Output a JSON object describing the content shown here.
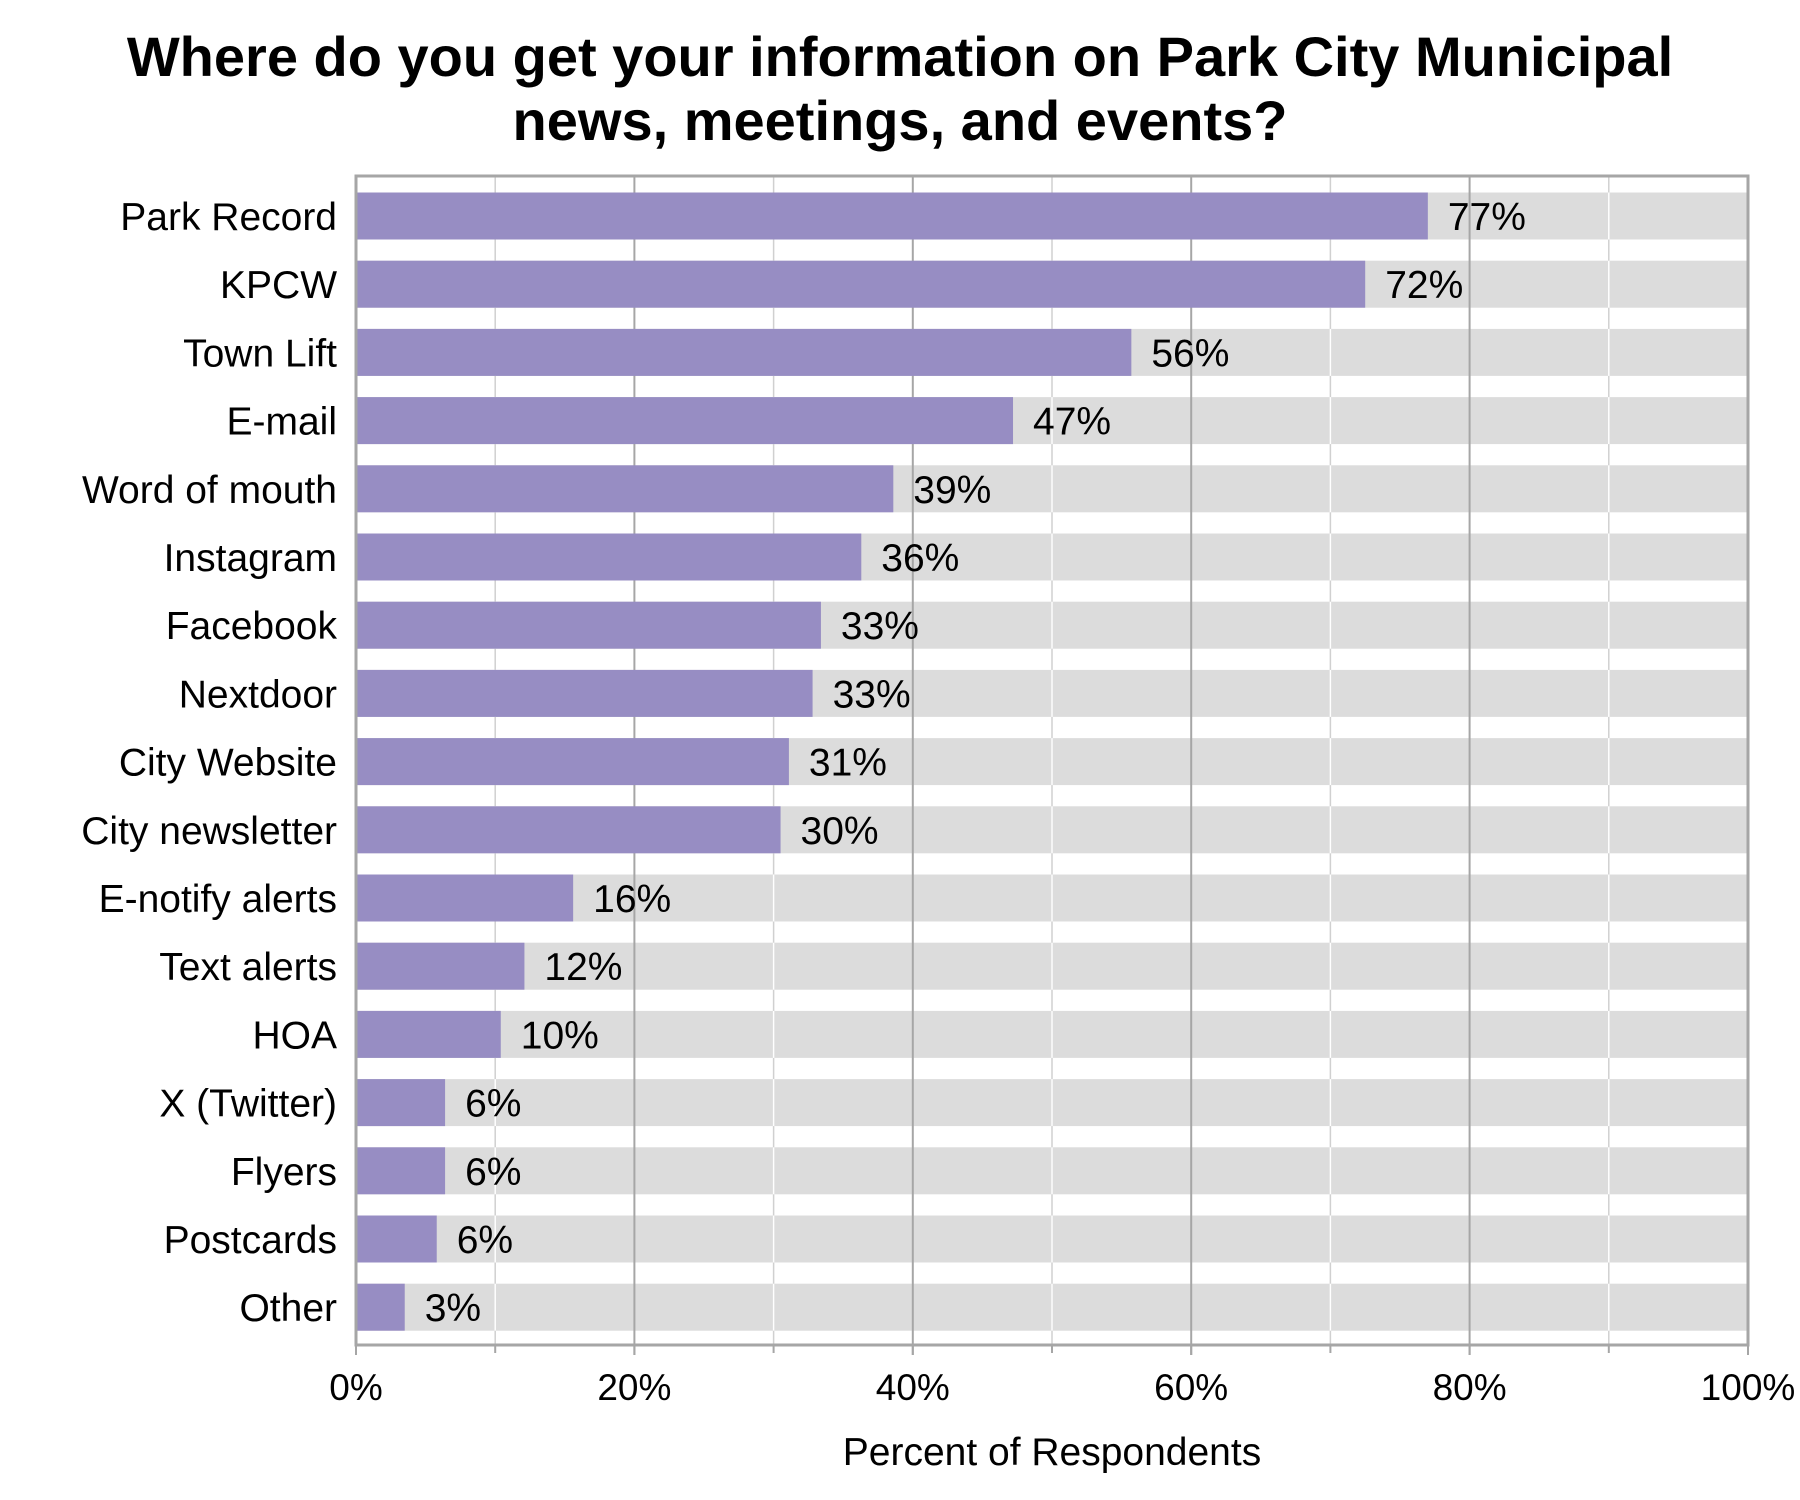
{
  "chart_data": {
    "type": "bar",
    "orientation": "horizontal",
    "title": "Where do you get your information on Park City Municipal news, meetings, and events?",
    "title_lines": [
      "Where do you get your information on Park City Municipal",
      "news, meetings, and events?"
    ],
    "xlabel": "Percent of Respondents",
    "ylabel": "",
    "xlim": [
      0,
      100
    ],
    "x_ticks": [
      0,
      20,
      40,
      60,
      80,
      100
    ],
    "x_tick_labels": [
      "0%",
      "20%",
      "40%",
      "60%",
      "80%",
      "100%"
    ],
    "grid": "vertical",
    "categories": [
      "Park Record",
      "KPCW",
      "Town Lift",
      "E-mail",
      "Word of mouth",
      "Instagram",
      "Facebook",
      "Nextdoor",
      "City Website",
      "City newsletter",
      "E-notify alerts",
      "Text alerts",
      "HOA",
      "X (Twitter)",
      "Flyers",
      "Postcards",
      "Other"
    ],
    "values": [
      77,
      72.5,
      55.7,
      47.2,
      38.6,
      36.3,
      33.4,
      32.8,
      31.1,
      30.5,
      15.6,
      12.1,
      10.4,
      6.4,
      6.4,
      5.8,
      3.5
    ],
    "value_labels": [
      "77%",
      "72%",
      "56%",
      "47%",
      "39%",
      "36%",
      "33%",
      "33%",
      "31%",
      "30%",
      "16%",
      "12%",
      "10%",
      "6%",
      "6%",
      "6%",
      "3%"
    ],
    "bar_color": "#978dc3",
    "track_color": "#dcdcdc",
    "grid_color": "#a6a6a6",
    "minor_grid_color": "#ffffff",
    "frame_color": "#a6a6a6"
  }
}
